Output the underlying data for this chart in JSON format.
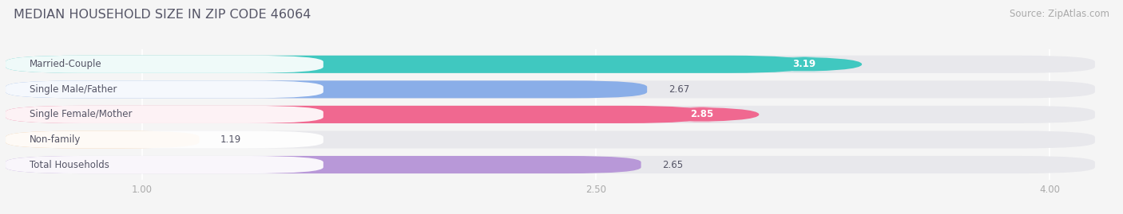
{
  "title": "MEDIAN HOUSEHOLD SIZE IN ZIP CODE 46064",
  "source": "Source: ZipAtlas.com",
  "categories": [
    "Married-Couple",
    "Single Male/Father",
    "Single Female/Mother",
    "Non-family",
    "Total Households"
  ],
  "values": [
    3.19,
    2.67,
    2.85,
    1.19,
    2.65
  ],
  "bar_colors": [
    "#40c8c0",
    "#8aaee8",
    "#f06890",
    "#f5c895",
    "#b898d8"
  ],
  "value_label_colors": [
    "white",
    "#555555",
    "white",
    "#555555",
    "#555555"
  ],
  "xlim_start": 0.55,
  "xlim_end": 4.15,
  "xticks": [
    1.0,
    2.5,
    4.0
  ],
  "background_color": "#f5f5f5",
  "bar_bg_color": "#e8e8ec",
  "bar_sep_color": "#ffffff",
  "title_color": "#555566",
  "label_color": "#555566",
  "tick_color": "#aaaaaa",
  "title_fontsize": 11.5,
  "source_fontsize": 8.5,
  "label_fontsize": 8.5,
  "value_fontsize": 8.5,
  "bar_height": 0.7,
  "bar_rounding": 0.25
}
